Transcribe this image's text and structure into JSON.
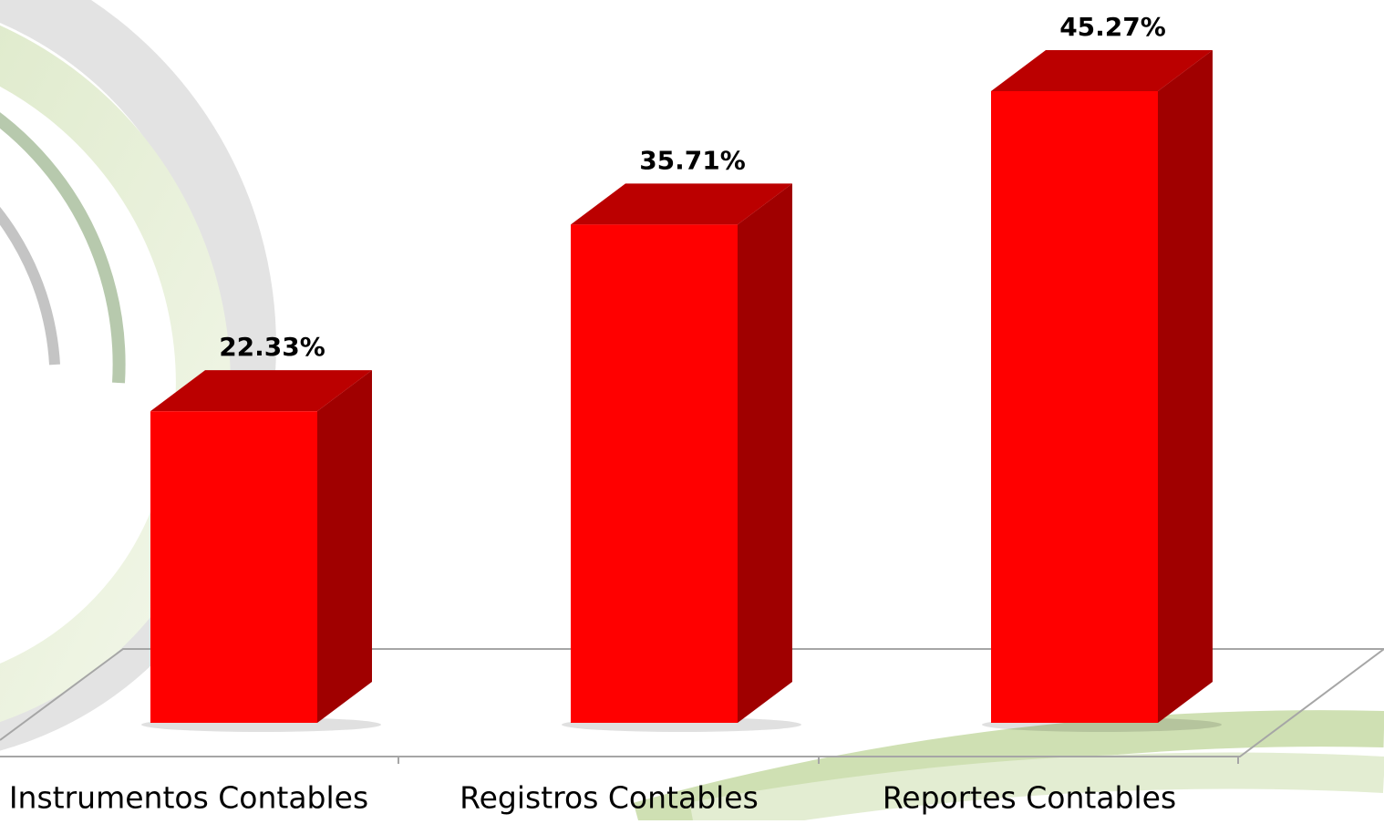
{
  "chart_data": {
    "type": "bar3d",
    "categories": [
      "Instrumentos Contables",
      "Registros Contables",
      "Reportes Contables"
    ],
    "values": [
      22.33,
      35.71,
      45.27
    ],
    "value_labels": [
      "22.33%",
      "35.71%",
      "45.27%"
    ],
    "color": "#ff0000"
  }
}
